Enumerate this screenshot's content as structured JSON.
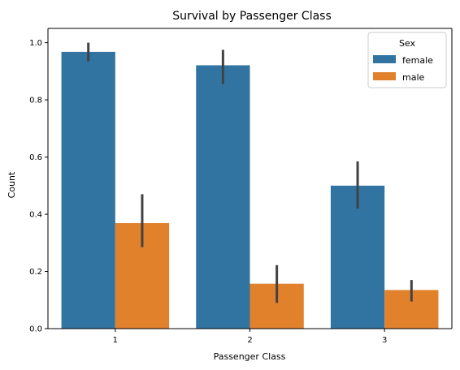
{
  "chart_data": {
    "type": "bar",
    "title": "Survival by Passenger Class",
    "xlabel": "Passenger Class",
    "ylabel": "Count",
    "categories": [
      "1",
      "2",
      "3"
    ],
    "ylim": [
      0,
      1.05
    ],
    "yticks": [
      "0.0",
      "0.2",
      "0.4",
      "0.6",
      "0.8",
      "1.0"
    ],
    "grid": false,
    "legend": {
      "title": "Sex",
      "placement": "top-right"
    },
    "series": [
      {
        "name": "female",
        "color": "#3274a1",
        "values": [
          0.968,
          0.921,
          0.5
        ],
        "ci_low": [
          0.935,
          0.855,
          0.42
        ],
        "ci_high": [
          1.0,
          0.975,
          0.585
        ]
      },
      {
        "name": "male",
        "color": "#e1812c",
        "values": [
          0.369,
          0.157,
          0.135
        ],
        "ci_low": [
          0.285,
          0.09,
          0.095
        ],
        "ci_high": [
          0.47,
          0.222,
          0.17
        ]
      }
    ]
  }
}
